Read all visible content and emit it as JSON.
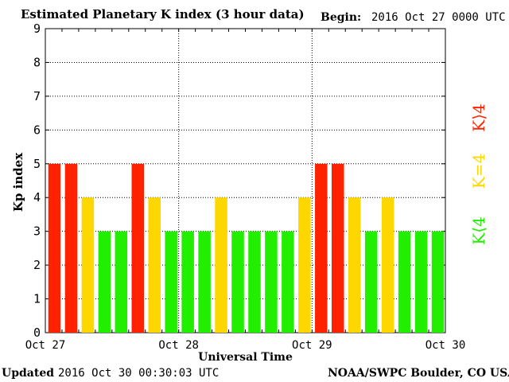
{
  "header": {
    "title": "Estimated Planetary K index (3 hour data)",
    "begin_label": "Begin:",
    "begin_value": "2016 Oct 27 0000 UTC"
  },
  "footer": {
    "updated_label": "Updated",
    "updated_value": "2016 Oct 30 00:30:03 UTC",
    "credit": "NOAA/SWPC Boulder, CO USA"
  },
  "legend": [
    {
      "label": "K>4",
      "display": "K⟩4",
      "color": "#ff2200"
    },
    {
      "label": "K=4",
      "display": "K=4",
      "color": "#ffd700"
    },
    {
      "label": "K<4",
      "display": "K⟨4",
      "color": "#22ee00"
    }
  ],
  "chart_data": {
    "type": "bar",
    "title": "Estimated Planetary K index (3 hour data)",
    "xlabel": "Universal Time",
    "ylabel": "Kp index",
    "ylim": [
      0,
      9
    ],
    "yticks": [
      0,
      1,
      2,
      3,
      4,
      5,
      6,
      7,
      8,
      9
    ],
    "xticks": [
      "Oct 27",
      "Oct 28",
      "Oct 29",
      "Oct 30"
    ],
    "grid": true,
    "bar_interval_hours": 3,
    "values": [
      5,
      5,
      4,
      3,
      3,
      5,
      4,
      3,
      3,
      3,
      4,
      3,
      3,
      3,
      3,
      4,
      5,
      5,
      4,
      3,
      4,
      3,
      3,
      3
    ],
    "colors": {
      "above4": "#ff2200",
      "equal4": "#ffd700",
      "below4": "#22ee00"
    }
  }
}
